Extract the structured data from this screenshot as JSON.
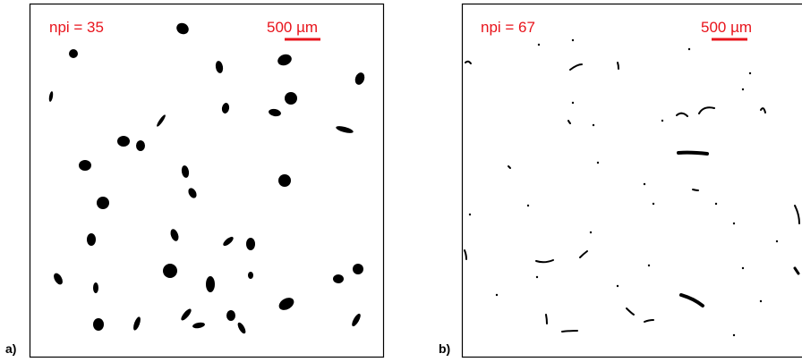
{
  "panels": [
    {
      "label": "a)",
      "annotation": "npi = 35",
      "scale_bar": "500 µm"
    },
    {
      "label": "b)",
      "annotation": "npi = 67",
      "scale_bar": "500 µm"
    }
  ]
}
